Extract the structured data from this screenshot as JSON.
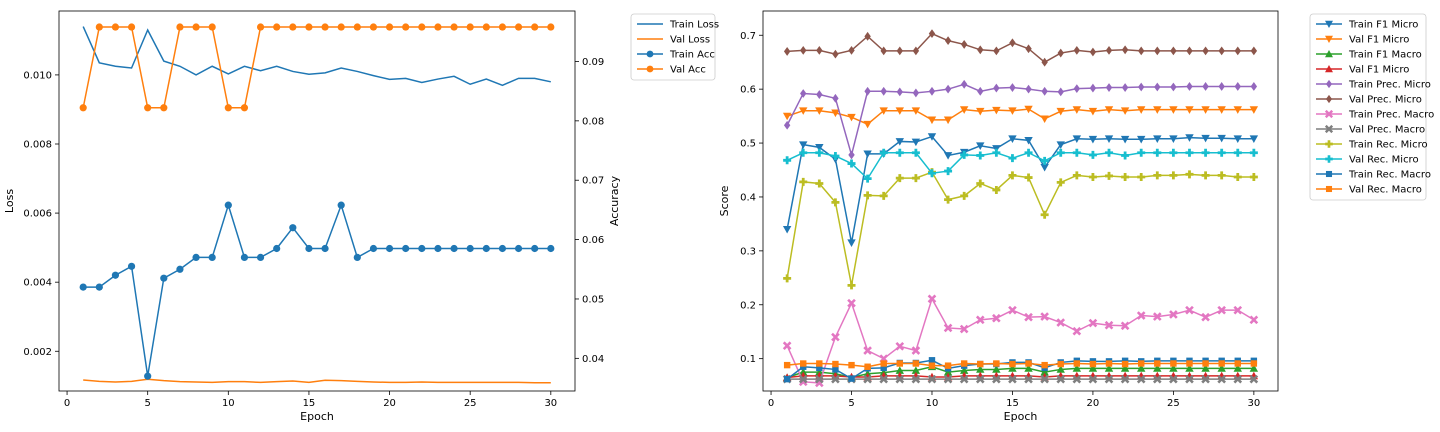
{
  "chart_data": [
    {
      "type": "line",
      "xlabel": "Epoch",
      "ylabel": "Loss",
      "y2label": "Accuracy",
      "xlim": [
        -0.5,
        31.5
      ],
      "ylim": [
        0.00085,
        0.01185
      ],
      "y2lim": [
        0.0345,
        0.0985
      ],
      "xticks": [
        0,
        5,
        10,
        15,
        20,
        25,
        30
      ],
      "yticks": [
        0.002,
        0.004,
        0.006,
        0.008,
        0.01
      ],
      "ytick_labels": [
        "0.002",
        "0.004",
        "0.006",
        "0.008",
        "0.010"
      ],
      "y2ticks": [
        0.04,
        0.05,
        0.06,
        0.07,
        0.08,
        0.09
      ],
      "y2tick_labels": [
        "0.04",
        "0.05",
        "0.06",
        "0.07",
        "0.08",
        "0.09"
      ],
      "x": [
        1,
        2,
        3,
        4,
        5,
        6,
        7,
        8,
        9,
        10,
        11,
        12,
        13,
        14,
        15,
        16,
        17,
        18,
        19,
        20,
        21,
        22,
        23,
        24,
        25,
        26,
        27,
        28,
        29,
        30
      ],
      "legend_position": "outside-right",
      "series": [
        {
          "name": "Train Loss",
          "axis": "left",
          "color": "#1f77b4",
          "marker": "none",
          "values": [
            0.0114,
            0.01035,
            0.01025,
            0.0102,
            0.0113,
            0.0104,
            0.01025,
            0.01,
            0.01025,
            0.01003,
            0.01025,
            0.01012,
            0.01025,
            0.0101,
            0.01002,
            0.01006,
            0.0102,
            0.0101,
            0.00998,
            0.00987,
            0.0099,
            0.00978,
            0.00988,
            0.00996,
            0.00973,
            0.00988,
            0.0097,
            0.0099,
            0.0099,
            0.0098
          ]
        },
        {
          "name": "Val Loss",
          "axis": "left",
          "color": "#ff7f0e",
          "marker": "none",
          "values": [
            0.00117,
            0.00113,
            0.00111,
            0.00113,
            0.00119,
            0.00115,
            0.00112,
            0.00111,
            0.0011,
            0.00112,
            0.00112,
            0.0011,
            0.00112,
            0.00114,
            0.0011,
            0.00116,
            0.00115,
            0.00113,
            0.00111,
            0.0011,
            0.0011,
            0.00111,
            0.0011,
            0.0011,
            0.0011,
            0.0011,
            0.0011,
            0.0011,
            0.00109,
            0.00109
          ]
        },
        {
          "name": "Train Acc",
          "axis": "right",
          "color": "#1f77b4",
          "marker": "circle",
          "values": [
            0.052,
            0.052,
            0.054,
            0.0555,
            0.037,
            0.0535,
            0.055,
            0.057,
            0.057,
            0.0658,
            0.057,
            0.057,
            0.0585,
            0.062,
            0.0585,
            0.0585,
            0.0658,
            0.057,
            0.0585,
            0.0585,
            0.0585,
            0.0585,
            0.0585,
            0.0585,
            0.0585,
            0.0585,
            0.0585,
            0.0585,
            0.0585,
            0.0585
          ]
        },
        {
          "name": "Val Acc",
          "axis": "right",
          "color": "#ff7f0e",
          "marker": "circle",
          "values": [
            0.0822,
            0.0958,
            0.0958,
            0.0958,
            0.0822,
            0.0822,
            0.0958,
            0.0958,
            0.0958,
            0.0822,
            0.0822,
            0.0958,
            0.0958,
            0.0958,
            0.0958,
            0.0958,
            0.0958,
            0.0958,
            0.0958,
            0.0958,
            0.0958,
            0.0958,
            0.0958,
            0.0958,
            0.0958,
            0.0958,
            0.0958,
            0.0958,
            0.0958,
            0.0958
          ]
        }
      ]
    },
    {
      "type": "line",
      "xlabel": "Epoch",
      "ylabel": "Score",
      "xlim": [
        -0.5,
        31.5
      ],
      "ylim": [
        0.04,
        0.745
      ],
      "xticks": [
        0,
        5,
        10,
        15,
        20,
        25,
        30
      ],
      "yticks": [
        0.1,
        0.2,
        0.3,
        0.4,
        0.5,
        0.6,
        0.7
      ],
      "ytick_labels": [
        "0.1",
        "0.2",
        "0.3",
        "0.4",
        "0.5",
        "0.6",
        "0.7"
      ],
      "x": [
        1,
        2,
        3,
        4,
        5,
        6,
        7,
        8,
        9,
        10,
        11,
        12,
        13,
        14,
        15,
        16,
        17,
        18,
        19,
        20,
        21,
        22,
        23,
        24,
        25,
        26,
        27,
        28,
        29,
        30
      ],
      "legend_position": "outside-right",
      "series": [
        {
          "name": "Train F1 Micro",
          "color": "#1f77b4",
          "marker": "tri_down",
          "values": [
            0.34,
            0.497,
            0.492,
            0.47,
            0.315,
            0.48,
            0.48,
            0.503,
            0.502,
            0.512,
            0.477,
            0.483,
            0.495,
            0.49,
            0.508,
            0.505,
            0.455,
            0.497,
            0.508,
            0.507,
            0.508,
            0.507,
            0.507,
            0.508,
            0.508,
            0.51,
            0.509,
            0.509,
            0.508,
            0.508
          ]
        },
        {
          "name": "Val F1 Micro",
          "color": "#ff7f0e",
          "marker": "tri_down",
          "values": [
            0.55,
            0.56,
            0.56,
            0.556,
            0.548,
            0.535,
            0.56,
            0.56,
            0.56,
            0.543,
            0.543,
            0.562,
            0.559,
            0.561,
            0.56,
            0.563,
            0.545,
            0.559,
            0.562,
            0.559,
            0.562,
            0.56,
            0.562,
            0.562,
            0.562,
            0.562,
            0.562,
            0.562,
            0.562,
            0.562
          ]
        },
        {
          "name": "Train F1 Macro",
          "color": "#2ca02c",
          "marker": "tri_up",
          "values": [
            0.065,
            0.075,
            0.075,
            0.072,
            0.065,
            0.072,
            0.074,
            0.078,
            0.078,
            0.085,
            0.075,
            0.078,
            0.08,
            0.08,
            0.082,
            0.082,
            0.075,
            0.08,
            0.082,
            0.082,
            0.082,
            0.082,
            0.082,
            0.082,
            0.082,
            0.082,
            0.082,
            0.082,
            0.082,
            0.082
          ]
        },
        {
          "name": "Val F1 Micro",
          "color": "#d62728",
          "marker": "tri_up",
          "values": [
            0.065,
            0.068,
            0.068,
            0.068,
            0.066,
            0.066,
            0.068,
            0.068,
            0.068,
            0.066,
            0.066,
            0.068,
            0.068,
            0.068,
            0.068,
            0.068,
            0.066,
            0.068,
            0.068,
            0.068,
            0.068,
            0.068,
            0.068,
            0.068,
            0.068,
            0.068,
            0.068,
            0.068,
            0.068,
            0.068
          ]
        },
        {
          "name": "Train Prec. Micro",
          "color": "#9467bd",
          "marker": "diamond",
          "values": [
            0.533,
            0.592,
            0.59,
            0.583,
            0.478,
            0.596,
            0.596,
            0.595,
            0.593,
            0.596,
            0.6,
            0.609,
            0.596,
            0.602,
            0.603,
            0.6,
            0.596,
            0.595,
            0.601,
            0.602,
            0.603,
            0.603,
            0.604,
            0.604,
            0.604,
            0.605,
            0.605,
            0.605,
            0.605,
            0.605
          ]
        },
        {
          "name": "Val Prec. Micro",
          "color": "#8c564b",
          "marker": "diamond",
          "values": [
            0.67,
            0.672,
            0.672,
            0.665,
            0.672,
            0.698,
            0.671,
            0.671,
            0.671,
            0.703,
            0.69,
            0.683,
            0.673,
            0.671,
            0.686,
            0.675,
            0.65,
            0.667,
            0.672,
            0.669,
            0.672,
            0.673,
            0.671,
            0.671,
            0.671,
            0.671,
            0.671,
            0.671,
            0.671,
            0.671
          ]
        },
        {
          "name": "Train Prec. Macro",
          "color": "#e377c2",
          "marker": "x",
          "values": [
            0.124,
            0.057,
            0.055,
            0.14,
            0.203,
            0.115,
            0.1,
            0.123,
            0.115,
            0.211,
            0.157,
            0.155,
            0.172,
            0.175,
            0.19,
            0.177,
            0.178,
            0.167,
            0.151,
            0.166,
            0.162,
            0.161,
            0.18,
            0.178,
            0.182,
            0.19,
            0.177,
            0.19,
            0.19,
            0.172
          ]
        },
        {
          "name": "Val Prec. Macro",
          "color": "#7f7f7f",
          "marker": "x",
          "values": [
            0.062,
            0.062,
            0.062,
            0.062,
            0.062,
            0.062,
            0.062,
            0.062,
            0.062,
            0.062,
            0.062,
            0.062,
            0.062,
            0.062,
            0.062,
            0.062,
            0.062,
            0.062,
            0.062,
            0.062,
            0.062,
            0.062,
            0.062,
            0.062,
            0.062,
            0.062,
            0.062,
            0.062,
            0.062,
            0.062
          ]
        },
        {
          "name": "Train Rec. Micro",
          "color": "#bcbd22",
          "marker": "plus",
          "values": [
            0.249,
            0.428,
            0.425,
            0.39,
            0.236,
            0.403,
            0.402,
            0.435,
            0.435,
            0.446,
            0.395,
            0.402,
            0.425,
            0.413,
            0.44,
            0.436,
            0.367,
            0.427,
            0.44,
            0.437,
            0.439,
            0.437,
            0.437,
            0.44,
            0.44,
            0.442,
            0.44,
            0.44,
            0.437,
            0.437
          ]
        },
        {
          "name": "Val Rec. Micro",
          "color": "#17becf",
          "marker": "plus",
          "values": [
            0.468,
            0.482,
            0.482,
            0.476,
            0.462,
            0.434,
            0.482,
            0.482,
            0.482,
            0.444,
            0.448,
            0.478,
            0.477,
            0.482,
            0.472,
            0.482,
            0.467,
            0.482,
            0.482,
            0.478,
            0.482,
            0.477,
            0.482,
            0.482,
            0.482,
            0.482,
            0.482,
            0.482,
            0.482,
            0.482
          ]
        },
        {
          "name": "Train Rec. Macro",
          "color": "#1f77b4",
          "marker": "square",
          "values": [
            0.062,
            0.085,
            0.083,
            0.08,
            0.063,
            0.082,
            0.083,
            0.092,
            0.092,
            0.097,
            0.082,
            0.087,
            0.09,
            0.09,
            0.093,
            0.093,
            0.083,
            0.093,
            0.096,
            0.095,
            0.095,
            0.096,
            0.095,
            0.096,
            0.096,
            0.096,
            0.096,
            0.096,
            0.096,
            0.096
          ]
        },
        {
          "name": "Val Rec. Macro",
          "color": "#ff7f0e",
          "marker": "square",
          "values": [
            0.088,
            0.091,
            0.091,
            0.09,
            0.088,
            0.085,
            0.091,
            0.091,
            0.091,
            0.087,
            0.087,
            0.091,
            0.09,
            0.091,
            0.09,
            0.091,
            0.088,
            0.09,
            0.091,
            0.09,
            0.091,
            0.09,
            0.091,
            0.091,
            0.091,
            0.091,
            0.091,
            0.091,
            0.091,
            0.091
          ]
        }
      ]
    }
  ]
}
